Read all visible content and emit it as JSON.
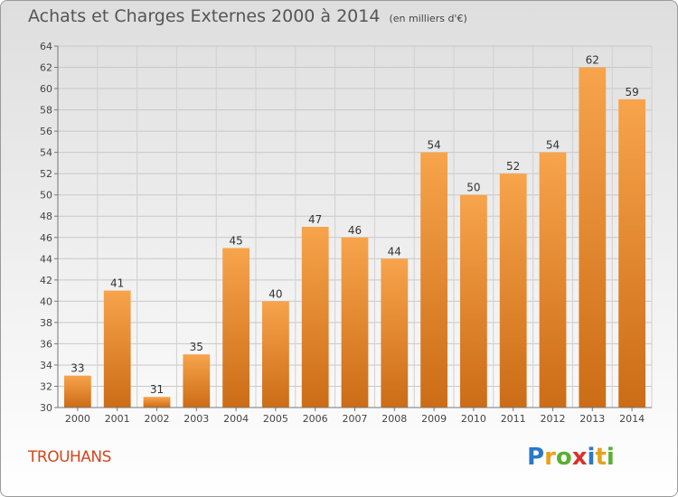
{
  "header": {
    "title": "Achats et Charges Externes 2000 à 2014",
    "subtitle": "(en milliers d'€)"
  },
  "footer": {
    "town": "TROUHANS",
    "logo": [
      "P",
      "r",
      "o",
      "x",
      "i",
      "t",
      "i"
    ]
  },
  "colors": {
    "bar_top": "#f7a44c",
    "bar_bottom": "#cc6c16",
    "town": "#d2461c"
  },
  "chart_data": {
    "type": "bar",
    "title": "Achats et Charges Externes 2000 à 2014",
    "subtitle": "(en milliers d'€)",
    "xlabel": "",
    "ylabel": "",
    "categories": [
      "2000",
      "2001",
      "2002",
      "2003",
      "2004",
      "2005",
      "2006",
      "2007",
      "2008",
      "2009",
      "2010",
      "2011",
      "2012",
      "2013",
      "2014"
    ],
    "values": [
      33,
      41,
      31,
      35,
      45,
      40,
      47,
      46,
      44,
      54,
      50,
      52,
      54,
      62,
      59
    ],
    "ylim": [
      30,
      64
    ],
    "yticks": [
      30,
      32,
      34,
      36,
      38,
      40,
      42,
      44,
      46,
      48,
      50,
      52,
      54,
      56,
      58,
      60,
      62,
      64
    ],
    "grid": true,
    "legend": "none"
  }
}
